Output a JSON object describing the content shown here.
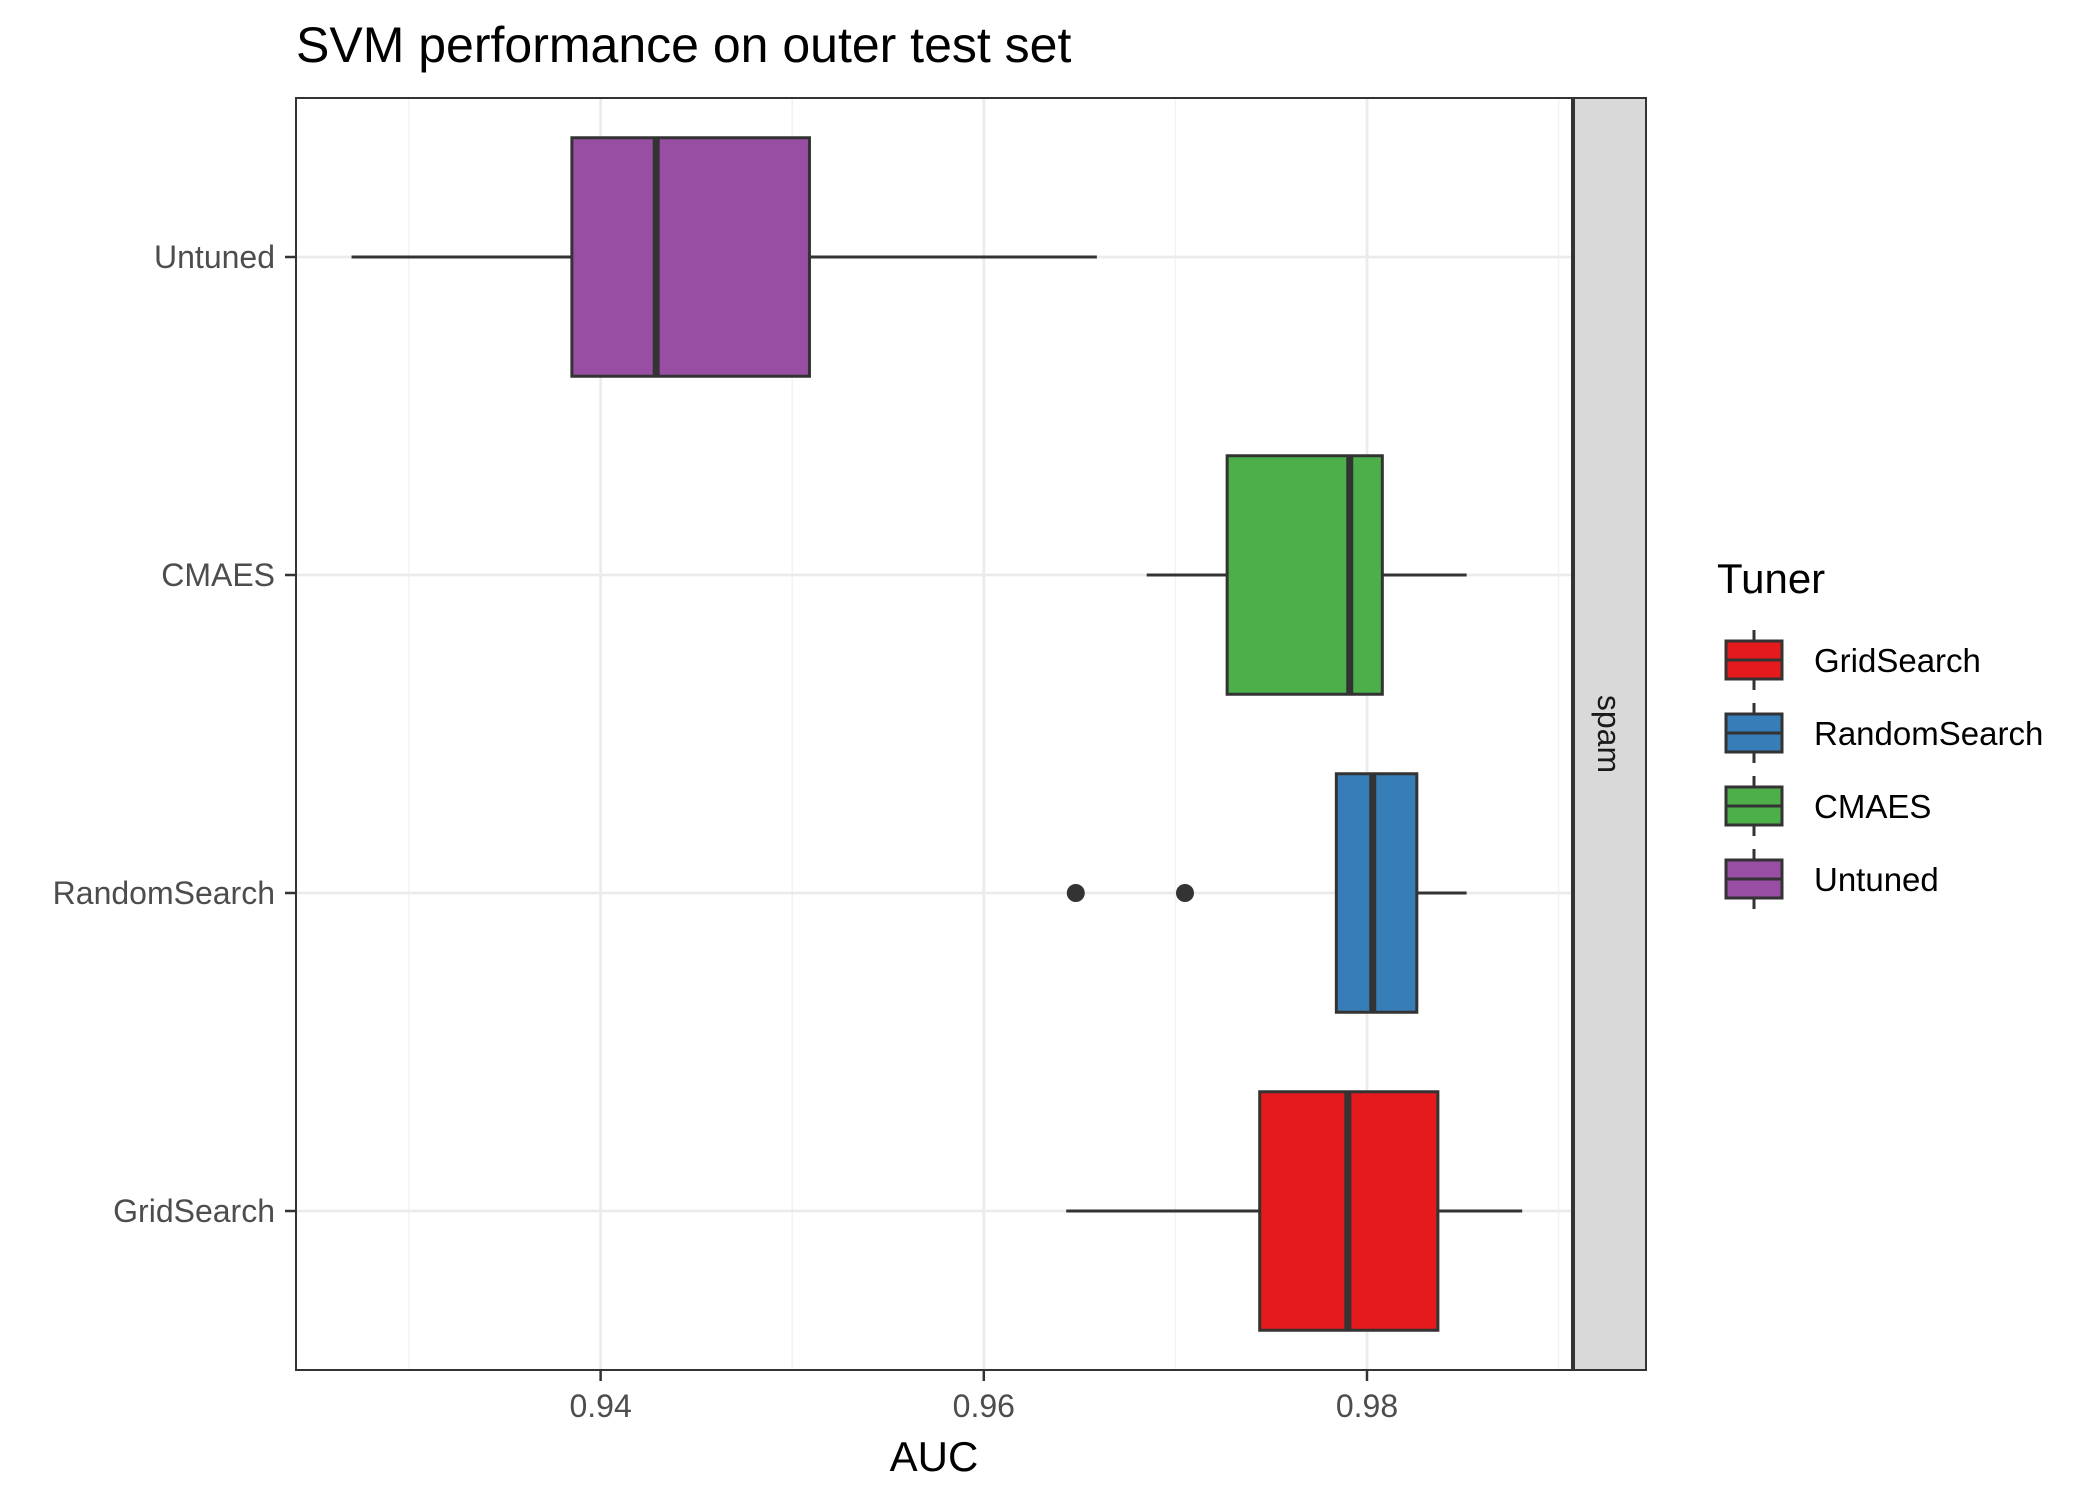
{
  "chart_data": {
    "type": "boxplot",
    "orientation": "horizontal",
    "title": "SVM performance on outer test set",
    "xlabel": "AUC",
    "ylabel": "",
    "facet": "spam",
    "xlim": [
      0.9241,
      0.9907
    ],
    "x_ticks": [
      0.94,
      0.96,
      0.98
    ],
    "x_tick_labels": [
      "0.94",
      "0.96",
      "0.98"
    ],
    "grid": true,
    "legend": {
      "title": "Tuner",
      "position": "right",
      "items": [
        "GridSearch",
        "RandomSearch",
        "CMAES",
        "Untuned"
      ]
    },
    "categories": [
      "Untuned",
      "CMAES",
      "RandomSearch",
      "GridSearch"
    ],
    "series": [
      {
        "name": "Untuned",
        "color": "#984EA3",
        "whisker_low": 0.927,
        "q1": 0.9385,
        "median": 0.9429,
        "q3": 0.9509,
        "whisker_high": 0.9659,
        "outliers": []
      },
      {
        "name": "CMAES",
        "color": "#4DAF4A",
        "whisker_low": 0.9685,
        "q1": 0.9727,
        "median": 0.9791,
        "q3": 0.9808,
        "whisker_high": 0.9852,
        "outliers": []
      },
      {
        "name": "RandomSearch",
        "color": "#377EB8",
        "whisker_low": 0.9784,
        "q1": 0.9784,
        "median": 0.9803,
        "q3": 0.9826,
        "whisker_high": 0.9852,
        "outliers": [
          0.9648,
          0.9705
        ]
      },
      {
        "name": "GridSearch",
        "color": "#E41A1C",
        "whisker_low": 0.9643,
        "q1": 0.9744,
        "median": 0.979,
        "q3": 0.9837,
        "whisker_high": 0.9881,
        "outliers": []
      }
    ]
  }
}
